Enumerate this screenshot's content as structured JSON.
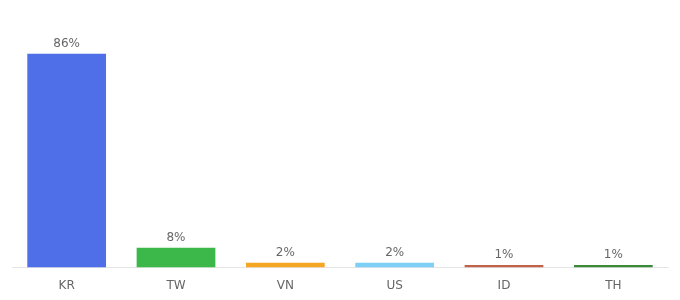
{
  "chart_data": {
    "type": "bar",
    "categories": [
      "KR",
      "TW",
      "VN",
      "US",
      "ID",
      "TH"
    ],
    "values": [
      86,
      8,
      2,
      2,
      1,
      1
    ],
    "value_labels": [
      "86%",
      "8%",
      "2%",
      "2%",
      "1%",
      "1%"
    ],
    "colors": [
      "#4f6fe8",
      "#3cb84a",
      "#f5a623",
      "#7ecff5",
      "#c0634a",
      "#3a8a3a"
    ],
    "ylim": [
      0,
      98
    ],
    "grid": false,
    "data_labels": true,
    "tick_labels": "x"
  }
}
